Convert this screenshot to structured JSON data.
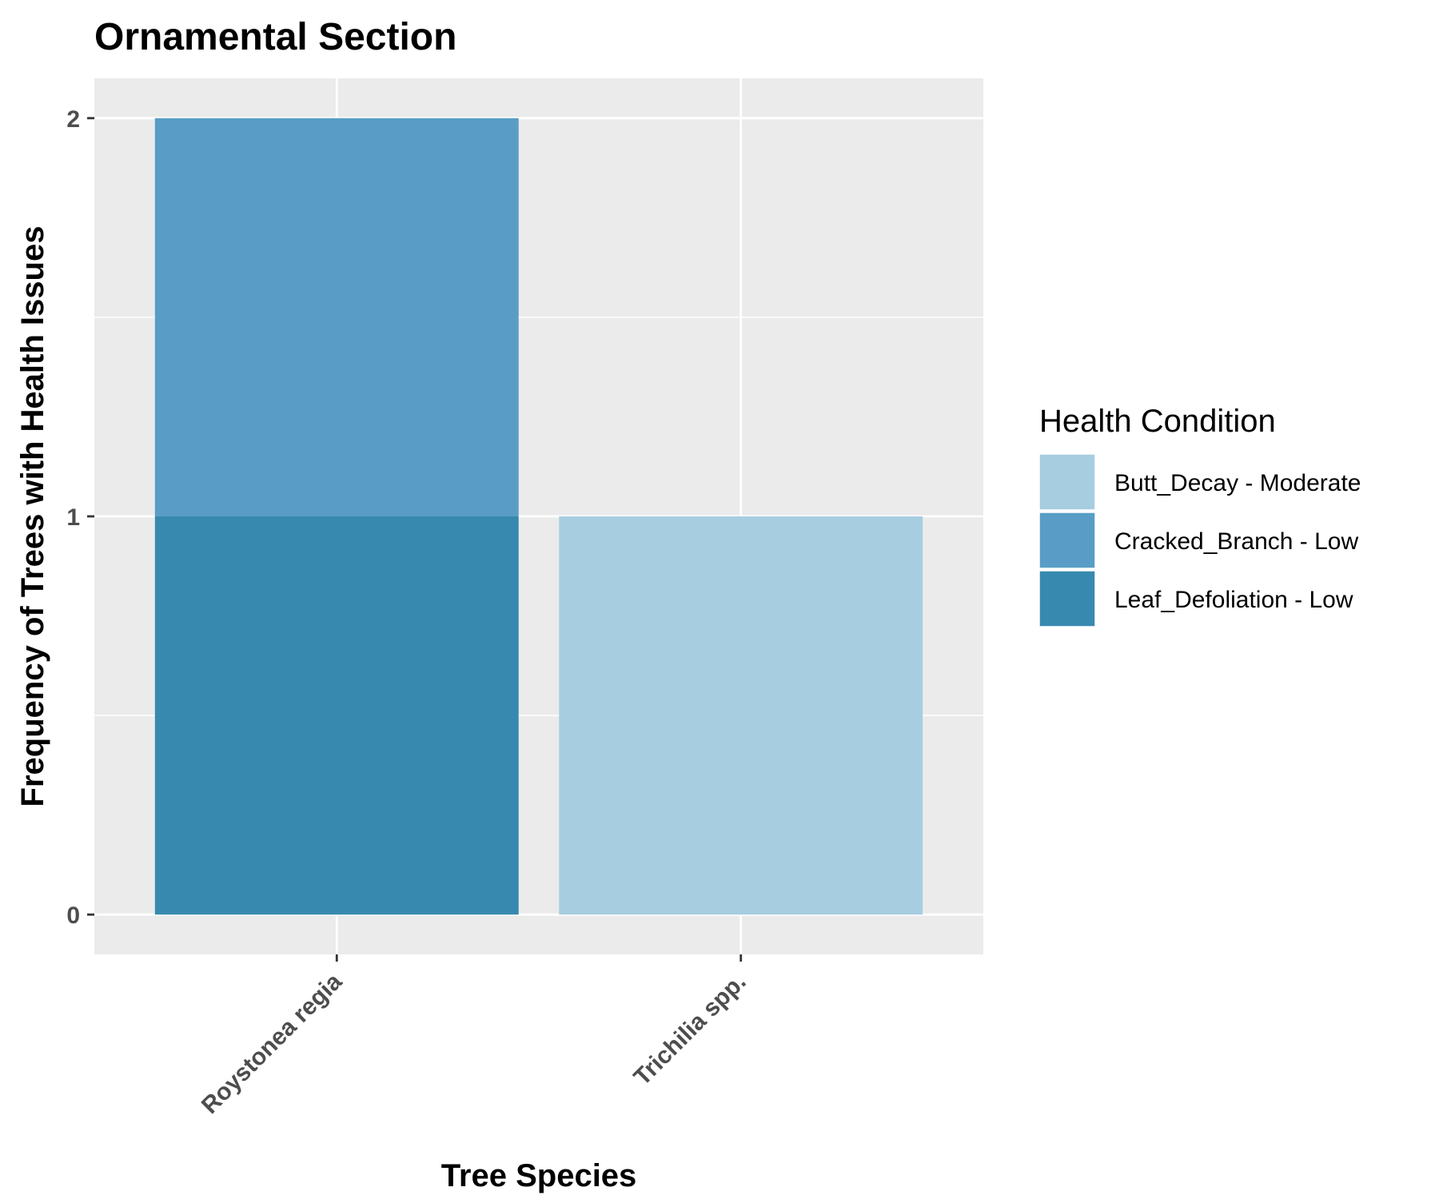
{
  "chart_data": {
    "type": "bar",
    "stacked": true,
    "title": "Ornamental Section",
    "xlabel": "Tree Species",
    "ylabel": "Frequency of Trees with Health Issues",
    "categories": [
      "Roystonea regia",
      "Trichilia spp."
    ],
    "ylim": [
      -0.1,
      2.1
    ],
    "yticks": [
      0,
      1,
      2
    ],
    "grid": true,
    "legend": {
      "title": "Health Condition",
      "position": "right"
    },
    "series": [
      {
        "name": "Leaf_Defoliation - Low",
        "values": [
          1,
          0
        ],
        "color": "#3889af"
      },
      {
        "name": "Cracked_Branch - Low",
        "values": [
          1,
          0
        ],
        "color": "#599dc6"
      },
      {
        "name": "Butt_Decay - Moderate",
        "values": [
          0,
          1
        ],
        "color": "#a7cde1"
      }
    ],
    "legend_order": [
      "Butt_Decay - Moderate",
      "Cracked_Branch - Low",
      "Leaf_Defoliation - Low"
    ],
    "panel_background": "#ebebeb",
    "gridline_color": "#ffffff"
  }
}
